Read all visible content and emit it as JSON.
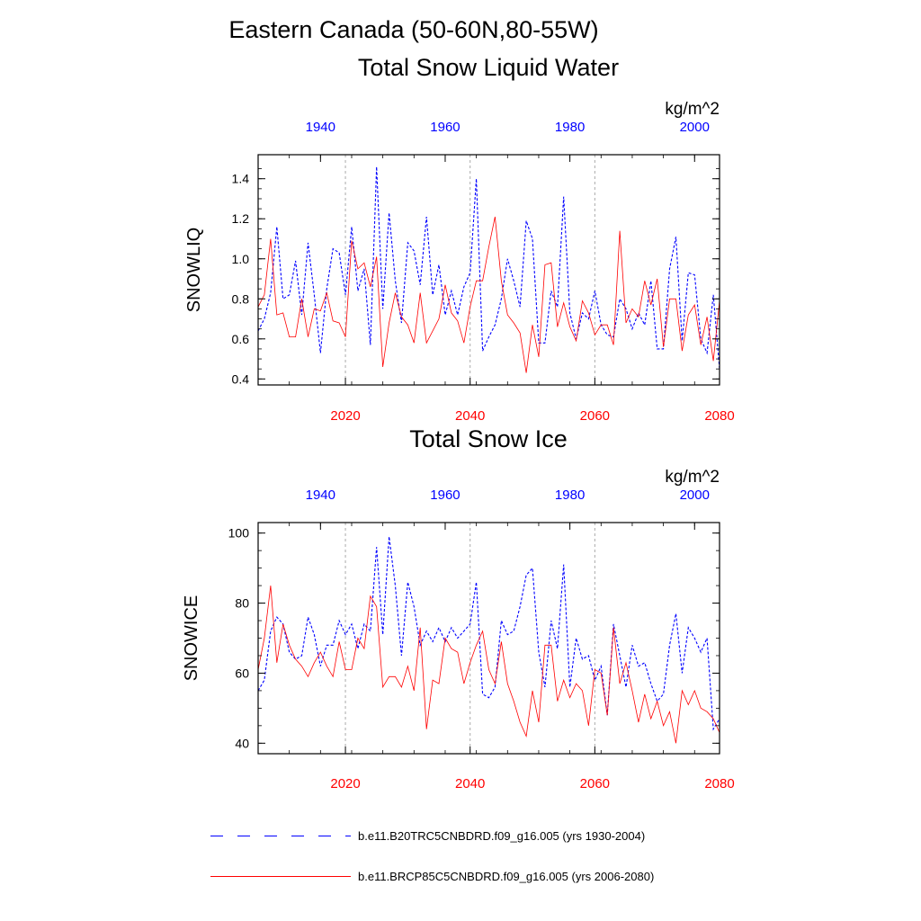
{
  "title": "Eastern Canada (50-60N,80-55W)",
  "legend": {
    "hist_label": "b.e11.B20TRC5CNBDRD.f09_g16.005 (yrs 1930-2004)",
    "rcp_label": "b.e11.BRCP85C5CNBDRD.f09_g16.005 (yrs 2006-2080)"
  },
  "colors": {
    "hist": "#0000ff",
    "rcp": "#ff0000",
    "grid": "#aaaaaa"
  },
  "chart_data": [
    {
      "type": "line",
      "title": "Total Snow Liquid Water",
      "units": "kg/m^2",
      "ylabel": "SNOWLIQ",
      "ylim": [
        0.37,
        1.52
      ],
      "yticks": [
        0.4,
        0.6,
        0.8,
        1.0,
        1.2,
        1.4
      ],
      "ytick_labels": [
        "0.4",
        "0.6",
        "0.8",
        "1.0",
        "1.2",
        "1.4"
      ],
      "bottom_axis": {
        "range": [
          2006,
          2080
        ],
        "ticks": [
          2020,
          2040,
          2060,
          2080
        ],
        "labels": [
          "2020",
          "2040",
          "2060",
          "2080"
        ]
      },
      "top_axis": {
        "range": [
          1930,
          2004
        ],
        "ticks": [
          1940,
          1960,
          1980,
          2000
        ],
        "labels": [
          "1940",
          "1960",
          "1980",
          "2000"
        ]
      },
      "grid_x": [
        2020,
        2040,
        2060
      ],
      "series": [
        {
          "name": "hist",
          "style": "dashed",
          "x_start": 1930,
          "values": [
            0.64,
            0.7,
            0.83,
            1.16,
            0.8,
            0.82,
            0.99,
            0.72,
            1.08,
            0.82,
            0.53,
            0.85,
            1.05,
            1.03,
            0.82,
            1.16,
            0.84,
            0.95,
            0.57,
            1.46,
            0.75,
            1.23,
            0.89,
            0.68,
            1.08,
            1.04,
            0.87,
            1.21,
            0.82,
            0.97,
            0.72,
            0.84,
            0.72,
            0.86,
            0.93,
            1.4,
            0.54,
            0.61,
            0.67,
            0.8,
            1.0,
            0.89,
            0.76,
            1.19,
            1.1,
            0.58,
            0.58,
            0.84,
            0.76,
            1.31,
            0.73,
            0.6,
            0.73,
            0.7,
            0.84,
            0.67,
            0.62,
            0.61,
            0.8,
            0.75,
            0.65,
            0.73,
            0.67,
            0.89,
            0.55,
            0.55,
            0.95,
            1.11,
            0.59,
            0.93,
            0.92,
            0.6,
            0.53,
            0.82,
            0.45
          ]
        },
        {
          "name": "rcp",
          "style": "solid",
          "x_start": 2006,
          "values": [
            0.76,
            0.82,
            1.1,
            0.72,
            0.73,
            0.61,
            0.61,
            0.8,
            0.61,
            0.75,
            0.74,
            0.83,
            0.69,
            0.68,
            0.61,
            1.09,
            0.95,
            0.98,
            0.86,
            1.01,
            0.46,
            0.68,
            0.83,
            0.71,
            0.67,
            0.58,
            0.83,
            0.58,
            0.64,
            0.7,
            0.87,
            0.73,
            0.69,
            0.58,
            0.76,
            0.89,
            0.89,
            1.06,
            1.21,
            0.89,
            0.72,
            0.68,
            0.63,
            0.43,
            0.67,
            0.51,
            0.97,
            0.98,
            0.66,
            0.78,
            0.66,
            0.59,
            0.79,
            0.73,
            0.62,
            0.67,
            0.67,
            0.57,
            1.14,
            0.68,
            0.75,
            0.71,
            0.89,
            0.77,
            0.9,
            0.56,
            0.8,
            0.8,
            0.54,
            0.72,
            0.77,
            0.57,
            0.71,
            0.49,
            0.79
          ]
        }
      ]
    },
    {
      "type": "line",
      "title": "Total Snow Ice",
      "units": "kg/m^2",
      "ylabel": "SNOWICE",
      "ylim": [
        37,
        103
      ],
      "yticks": [
        40,
        60,
        80,
        100
      ],
      "ytick_labels": [
        "40",
        "60",
        "80",
        "100"
      ],
      "bottom_axis": {
        "range": [
          2006,
          2080
        ],
        "ticks": [
          2020,
          2040,
          2060,
          2080
        ],
        "labels": [
          "2020",
          "2040",
          "2060",
          "2080"
        ]
      },
      "top_axis": {
        "range": [
          1930,
          2004
        ],
        "ticks": [
          1940,
          1960,
          1980,
          2000
        ],
        "labels": [
          "1940",
          "1960",
          "1980",
          "2000"
        ]
      },
      "grid_x": [
        2020,
        2040,
        2060
      ],
      "series": [
        {
          "name": "hist",
          "style": "dashed",
          "x_start": 1930,
          "values": [
            55,
            58,
            72,
            76,
            74,
            66,
            64,
            65,
            76,
            71,
            62,
            68,
            68,
            75,
            71,
            74,
            67,
            74,
            72,
            96,
            71,
            99,
            85,
            65,
            86,
            79,
            68,
            72,
            69,
            73,
            69,
            73,
            70,
            72,
            74,
            86,
            54,
            53,
            56,
            75,
            71,
            72,
            79,
            88,
            90,
            66,
            56,
            75,
            67,
            91,
            56,
            70,
            64,
            65,
            58,
            62,
            48,
            74,
            65,
            56,
            68,
            62,
            63,
            57,
            52,
            54,
            68,
            77,
            60,
            73,
            70,
            66,
            70,
            44,
            47
          ]
        },
        {
          "name": "rcp",
          "style": "solid",
          "x_start": 2006,
          "values": [
            61,
            70,
            85,
            63,
            74,
            68,
            64,
            62,
            59,
            63,
            66,
            62,
            59,
            69,
            61,
            61,
            70,
            67,
            82,
            79,
            56,
            59,
            59,
            56,
            62,
            55,
            73,
            44,
            58,
            57,
            70,
            67,
            66,
            57,
            63,
            68,
            72,
            61,
            57,
            69,
            57,
            52,
            46,
            42,
            55,
            46,
            68,
            68,
            52,
            58,
            53,
            57,
            55,
            45,
            61,
            60,
            48,
            73,
            57,
            63,
            55,
            46,
            54,
            47,
            52,
            45,
            49,
            40,
            55,
            51,
            55,
            50,
            49,
            47,
            43
          ]
        }
      ]
    }
  ]
}
